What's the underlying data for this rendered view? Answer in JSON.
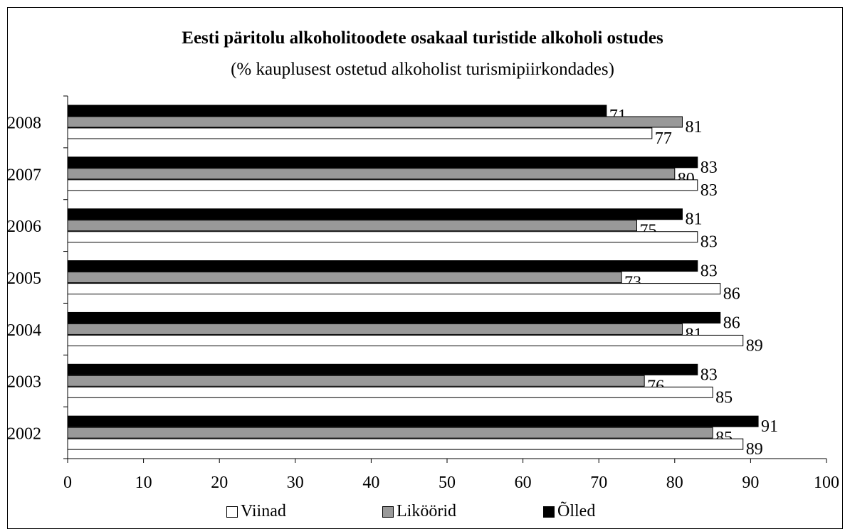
{
  "colors": {
    "viinad": "#ffffff",
    "likoorid": "#999999",
    "olled": "#000000"
  },
  "chart_data": {
    "type": "bar",
    "orientation": "horizontal",
    "title": "Eesti päritolu alkoholitoodete osakaal turistide alkoholi ostudes",
    "subtitle": "(% kauplusest ostetud alkoholist turismipiirkondades)",
    "categories": [
      "2008",
      "2007",
      "2006",
      "2005",
      "2004",
      "2003",
      "2002"
    ],
    "series": [
      {
        "name": "Õlled",
        "values": [
          71,
          83,
          81,
          83,
          86,
          83,
          91
        ]
      },
      {
        "name": "Liköörid",
        "values": [
          81,
          80,
          75,
          73,
          81,
          76,
          85
        ]
      },
      {
        "name": "Viinad",
        "values": [
          77,
          83,
          83,
          86,
          89,
          85,
          89
        ]
      }
    ],
    "x_ticks": [
      "0",
      "10",
      "20",
      "30",
      "40",
      "50",
      "60",
      "70",
      "80",
      "90",
      "100"
    ],
    "xlim": [
      0,
      100
    ],
    "grid": false,
    "legend_position": "bottom",
    "legend": [
      "Viinad",
      "Liköörid",
      "Õlled"
    ]
  }
}
